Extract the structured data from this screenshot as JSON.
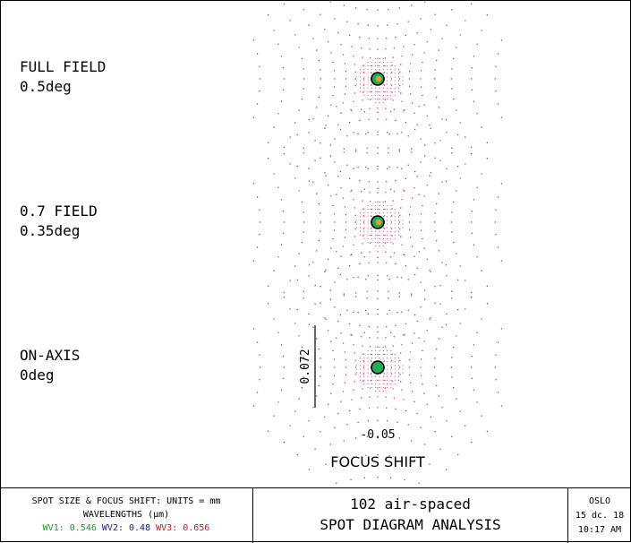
{
  "fields": [
    {
      "name": "FULL FIELD",
      "angle": "0.5deg"
    },
    {
      "name": "0.7 FIELD",
      "angle": "0.35deg"
    },
    {
      "name": "ON-AXIS",
      "angle": "0deg"
    }
  ],
  "scale_bar": {
    "label": "0.072"
  },
  "focus": {
    "shift_value": "-0.05",
    "axis_label": "FOCUS SHIFT"
  },
  "footer": {
    "units_line": "SPOT SIZE & FOCUS SHIFT: UNITS = mm",
    "wavelengths_label": "WAVELENGTHS (µm)",
    "wavelengths": [
      {
        "label": "WV1: 0.546",
        "color": "#1a9e1a"
      },
      {
        "label": "WV2: 0.48",
        "color": "#1a1aa8"
      },
      {
        "label": "WV3: 0.656",
        "color": "#c8181f"
      }
    ],
    "lens_title": "102 air-spaced",
    "analysis_title": "SPOT DIAGRAM ANALYSIS",
    "program": "OSLO",
    "date": "15 dc. 18",
    "time": "10:17 AM"
  },
  "colors": {
    "outer_dots": "#555566",
    "inner_dots": "#d0306a",
    "core_fill": "#22aa55",
    "core_hot": "#e0a030"
  }
}
